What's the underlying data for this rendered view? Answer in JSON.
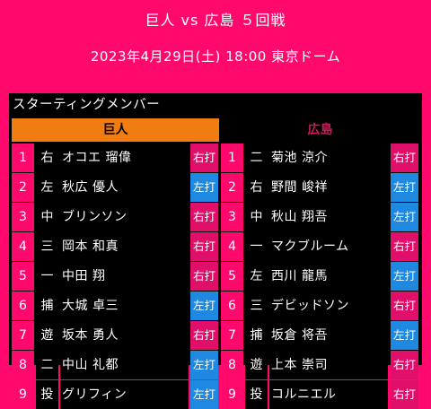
{
  "header": {
    "title": "巨人 vs 広島 ５回戦",
    "datetime": "2023年4月29日(土) 18:00 東京ドーム"
  },
  "card": {
    "title": "スターティングメンバー",
    "home_team": "巨人",
    "away_team": "広島"
  },
  "colors": {
    "background": "#ff0a6c",
    "home_header": "#f07c12",
    "away_header_text": "#c81c5a",
    "right_bat": "#e0106a",
    "left_bat": "#1f88e0"
  },
  "home_lineup": [
    {
      "order": "1",
      "position": "右",
      "name": "オコエ 瑠偉",
      "bats": "右打",
      "side": "r"
    },
    {
      "order": "2",
      "position": "左",
      "name": "秋広 優人",
      "bats": "左打",
      "side": "l"
    },
    {
      "order": "3",
      "position": "中",
      "name": "ブリンソン",
      "bats": "右打",
      "side": "r"
    },
    {
      "order": "4",
      "position": "三",
      "name": "岡本 和真",
      "bats": "右打",
      "side": "r"
    },
    {
      "order": "5",
      "position": "一",
      "name": "中田 翔",
      "bats": "右打",
      "side": "r"
    },
    {
      "order": "6",
      "position": "捕",
      "name": "大城 卓三",
      "bats": "左打",
      "side": "l"
    },
    {
      "order": "7",
      "position": "遊",
      "name": "坂本 勇人",
      "bats": "右打",
      "side": "r"
    },
    {
      "order": "8",
      "position": "二",
      "name": "中山 礼都",
      "bats": "左打",
      "side": "l"
    },
    {
      "order": "9",
      "position": "投",
      "name": "グリフィン",
      "bats": "左打",
      "side": "l"
    }
  ],
  "away_lineup": [
    {
      "order": "1",
      "position": "二",
      "name": "菊池 涼介",
      "bats": "右打",
      "side": "r"
    },
    {
      "order": "2",
      "position": "右",
      "name": "野間 峻祥",
      "bats": "左打",
      "side": "l"
    },
    {
      "order": "3",
      "position": "中",
      "name": "秋山 翔吾",
      "bats": "左打",
      "side": "l"
    },
    {
      "order": "4",
      "position": "一",
      "name": "マクブルーム",
      "bats": "右打",
      "side": "r"
    },
    {
      "order": "5",
      "position": "左",
      "name": "西川 龍馬",
      "bats": "左打",
      "side": "l"
    },
    {
      "order": "6",
      "position": "三",
      "name": "デビッドソン",
      "bats": "右打",
      "side": "r"
    },
    {
      "order": "7",
      "position": "捕",
      "name": "坂倉 将吾",
      "bats": "左打",
      "side": "l"
    },
    {
      "order": "8",
      "position": "遊",
      "name": "上本 崇司",
      "bats": "右打",
      "side": "r"
    },
    {
      "order": "9",
      "position": "投",
      "name": "コルニエル",
      "bats": "右打",
      "side": "r"
    }
  ]
}
